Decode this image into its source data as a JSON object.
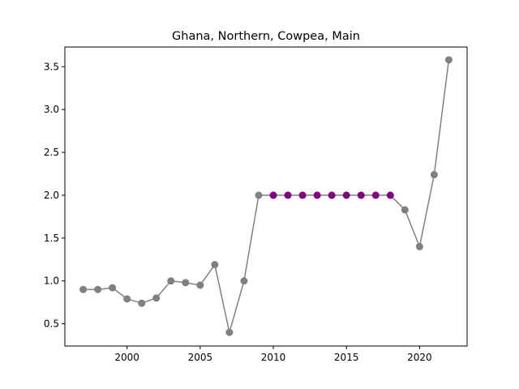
{
  "chart_data": {
    "type": "line",
    "title": "Ghana, Northern, Cowpea, Main",
    "xlabel": "",
    "ylabel": "",
    "xlim": [
      1995.75,
      2023.25
    ],
    "ylim": [
      0.24,
      3.73
    ],
    "x_ticks": [
      2000,
      2005,
      2010,
      2015,
      2020
    ],
    "y_ticks": [
      0.5,
      1.0,
      1.5,
      2.0,
      2.5,
      3.0,
      3.5
    ],
    "x_tick_labels": [
      "2000",
      "2005",
      "2010",
      "2015",
      "2020"
    ],
    "y_tick_labels": [
      "0.5",
      "1.0",
      "1.5",
      "2.0",
      "2.5",
      "3.0",
      "3.5"
    ],
    "grid": false,
    "line_color": "#808080",
    "default_marker_color": "#808080",
    "highlight_marker_color": "#800080",
    "series": [
      {
        "x": [
          1997,
          1998,
          1999,
          2000,
          2001,
          2002,
          2003,
          2004,
          2005,
          2006,
          2007,
          2008,
          2009,
          2010,
          2011,
          2012,
          2013,
          2014,
          2015,
          2016,
          2017,
          2018,
          2019,
          2020,
          2021,
          2022
        ],
        "y": [
          0.9,
          0.9,
          0.92,
          0.79,
          0.74,
          0.8,
          1.0,
          0.98,
          0.95,
          1.19,
          0.4,
          1.0,
          2.0,
          2.0,
          2.0,
          2.0,
          2.0,
          2.0,
          2.0,
          2.0,
          2.0,
          2.0,
          1.83,
          1.4,
          2.24,
          3.58
        ],
        "highlighted_x": [
          2010,
          2011,
          2012,
          2013,
          2014,
          2015,
          2016,
          2017,
          2018
        ]
      }
    ]
  }
}
